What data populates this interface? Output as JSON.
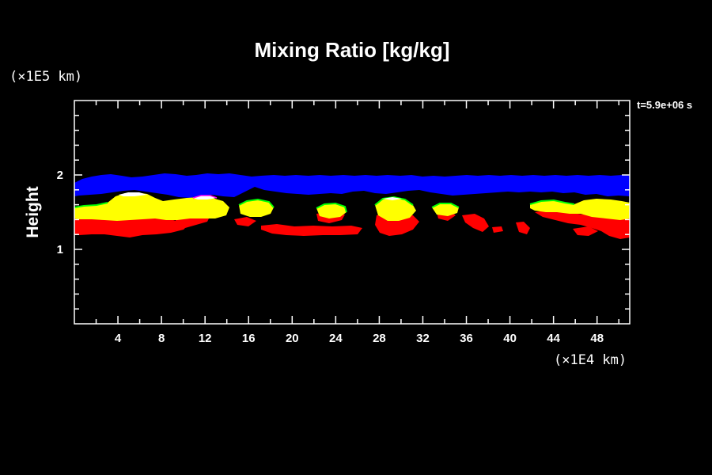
{
  "chart_data": {
    "type": "heatmap",
    "title": "Mixing Ratio [kg/kg]",
    "xlabel": "",
    "ylabel": "Height",
    "x_unit": "(×1E4 km)",
    "y_unit": "(×1E5 km)",
    "time_label": "t=5.9e+06 s",
    "xlim": [
      0,
      51
    ],
    "ylim": [
      0,
      3
    ],
    "x_ticks": [
      "4",
      "8",
      "12",
      "16",
      "20",
      "24",
      "28",
      "32",
      "36",
      "40",
      "44",
      "48"
    ],
    "y_ticks": [
      "1",
      "2"
    ],
    "colors": {
      "blue": "#0000ff",
      "yellow": "#ffff00",
      "red": "#ff0000",
      "green": "#00ff00",
      "white": "#ffffff",
      "magenta": "#ff00ff",
      "background": "#000000",
      "axis": "#ffffff"
    },
    "regions": [
      {
        "color": "blue",
        "name": "upper band",
        "x_range": [
          0,
          51
        ],
        "y_range": [
          1.7,
          2.0
        ]
      },
      {
        "color": "yellow",
        "name": "cell 1",
        "x_range": [
          0,
          14.5
        ],
        "y_range": [
          1.4,
          1.75
        ]
      },
      {
        "color": "red",
        "name": "lower band 1",
        "x_range": [
          0,
          9
        ],
        "y_range": [
          1.15,
          1.45
        ]
      },
      {
        "color": "yellow",
        "name": "cell 2",
        "x_range": [
          15,
          18.5
        ],
        "y_range": [
          1.42,
          1.67
        ]
      },
      {
        "color": "red",
        "name": "lower band 2",
        "x_range": [
          17.5,
          26.5
        ],
        "y_range": [
          1.18,
          1.32
        ]
      },
      {
        "color": "yellow",
        "name": "cell 3",
        "x_range": [
          22.5,
          25
        ],
        "y_range": [
          1.42,
          1.6
        ]
      },
      {
        "color": "yellow",
        "name": "cell 4",
        "x_range": [
          27.5,
          31
        ],
        "y_range": [
          1.4,
          1.7
        ]
      },
      {
        "color": "red",
        "name": "lower band 3",
        "x_range": [
          27.5,
          31.5
        ],
        "y_range": [
          1.15,
          1.45
        ]
      },
      {
        "color": "yellow",
        "name": "cell 5",
        "x_range": [
          33,
          35.5
        ],
        "y_range": [
          1.45,
          1.62
        ]
      },
      {
        "color": "red",
        "name": "lower band 4",
        "x_range": [
          36.5,
          41.5
        ],
        "y_range": [
          1.2,
          1.45
        ]
      },
      {
        "color": "yellow",
        "name": "cell 6",
        "x_range": [
          42,
          51
        ],
        "y_range": [
          1.35,
          1.7
        ]
      },
      {
        "color": "red",
        "name": "lower band 5",
        "x_range": [
          41.5,
          51
        ],
        "y_range": [
          1.15,
          1.45
        ]
      }
    ]
  }
}
